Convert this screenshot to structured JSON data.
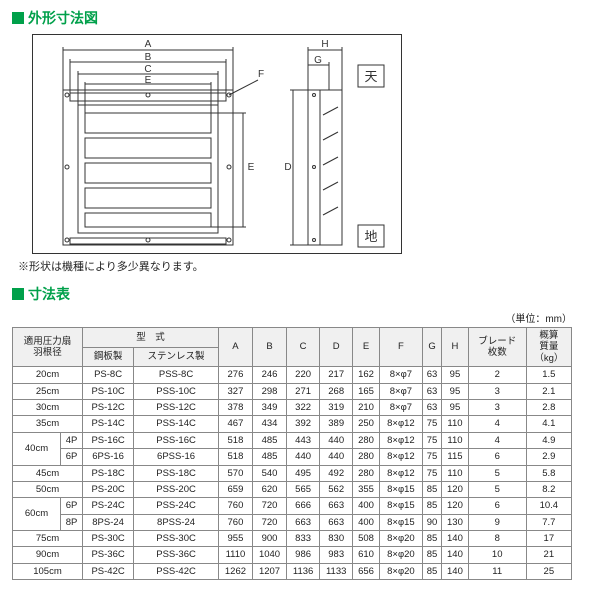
{
  "sections": {
    "diagram_title": "外形寸法図",
    "table_title": "寸法表"
  },
  "diagram_labels": {
    "A": "A",
    "B": "B",
    "C": "C",
    "D": "D",
    "E": "E",
    "F": "F",
    "G": "G",
    "H": "H",
    "sky": "天",
    "ground": "地"
  },
  "note": "※形状は機種により多少異なります。",
  "unit_label": "（単位：mm）",
  "headers": {
    "fan": "適用圧力扇\n羽根径",
    "model": "型　式",
    "steel": "鋼板製",
    "stainless": "ステンレス製",
    "A": "A",
    "B": "B",
    "C": "C",
    "D": "D",
    "E": "E",
    "F": "F",
    "G": "G",
    "H": "H",
    "blades": "ブレード\n枚数",
    "weight": "概算\n質量\n（kg）"
  },
  "rows": [
    {
      "fan": "20cm",
      "sub": "",
      "steel": "PS-8C",
      "ss": "PSS-8C",
      "A": "276",
      "B": "246",
      "C": "220",
      "D": "217",
      "E": "162",
      "F": "8×φ7",
      "G": "63",
      "H": "95",
      "bl": "2",
      "wt": "1.5"
    },
    {
      "fan": "25cm",
      "sub": "",
      "steel": "PS-10C",
      "ss": "PSS-10C",
      "A": "327",
      "B": "298",
      "C": "271",
      "D": "268",
      "E": "165",
      "F": "8×φ7",
      "G": "63",
      "H": "95",
      "bl": "3",
      "wt": "2.1"
    },
    {
      "fan": "30cm",
      "sub": "",
      "steel": "PS-12C",
      "ss": "PSS-12C",
      "A": "378",
      "B": "349",
      "C": "322",
      "D": "319",
      "E": "210",
      "F": "8×φ7",
      "G": "63",
      "H": "95",
      "bl": "3",
      "wt": "2.8"
    },
    {
      "fan": "35cm",
      "sub": "",
      "steel": "PS-14C",
      "ss": "PSS-14C",
      "A": "467",
      "B": "434",
      "C": "392",
      "D": "389",
      "E": "250",
      "F": "8×φ12",
      "G": "75",
      "H": "110",
      "bl": "4",
      "wt": "4.1"
    },
    {
      "fan": "40cm",
      "sub": "4P",
      "steel": "PS-16C",
      "ss": "PSS-16C",
      "A": "518",
      "B": "485",
      "C": "443",
      "D": "440",
      "E": "280",
      "F": "8×φ12",
      "G": "75",
      "H": "110",
      "bl": "4",
      "wt": "4.9"
    },
    {
      "fan": "40cm",
      "sub": "6P",
      "steel": "6PS-16",
      "ss": "6PSS-16",
      "A": "518",
      "B": "485",
      "C": "440",
      "D": "440",
      "E": "280",
      "F": "8×φ12",
      "G": "75",
      "H": "115",
      "bl": "6",
      "wt": "2.9"
    },
    {
      "fan": "45cm",
      "sub": "",
      "steel": "PS-18C",
      "ss": "PSS-18C",
      "A": "570",
      "B": "540",
      "C": "495",
      "D": "492",
      "E": "280",
      "F": "8×φ12",
      "G": "75",
      "H": "110",
      "bl": "5",
      "wt": "5.8"
    },
    {
      "fan": "50cm",
      "sub": "",
      "steel": "PS-20C",
      "ss": "PSS-20C",
      "A": "659",
      "B": "620",
      "C": "565",
      "D": "562",
      "E": "355",
      "F": "8×φ15",
      "G": "85",
      "H": "120",
      "bl": "5",
      "wt": "8.2"
    },
    {
      "fan": "60cm",
      "sub": "6P",
      "steel": "PS-24C",
      "ss": "PSS-24C",
      "A": "760",
      "B": "720",
      "C": "666",
      "D": "663",
      "E": "400",
      "F": "8×φ15",
      "G": "85",
      "H": "120",
      "bl": "6",
      "wt": "10.4"
    },
    {
      "fan": "60cm",
      "sub": "8P",
      "steel": "8PS-24",
      "ss": "8PSS-24",
      "A": "760",
      "B": "720",
      "C": "663",
      "D": "663",
      "E": "400",
      "F": "8×φ15",
      "G": "90",
      "H": "130",
      "bl": "9",
      "wt": "7.7"
    },
    {
      "fan": "75cm",
      "sub": "",
      "steel": "PS-30C",
      "ss": "PSS-30C",
      "A": "955",
      "B": "900",
      "C": "833",
      "D": "830",
      "E": "508",
      "F": "8×φ20",
      "G": "85",
      "H": "140",
      "bl": "8",
      "wt": "17"
    },
    {
      "fan": "90cm",
      "sub": "",
      "steel": "PS-36C",
      "ss": "PSS-36C",
      "A": "1110",
      "B": "1040",
      "C": "986",
      "D": "983",
      "E": "610",
      "F": "8×φ20",
      "G": "85",
      "H": "140",
      "bl": "10",
      "wt": "21"
    },
    {
      "fan": "105cm",
      "sub": "",
      "steel": "PS-42C",
      "ss": "PSS-42C",
      "A": "1262",
      "B": "1207",
      "C": "1136",
      "D": "1133",
      "E": "656",
      "F": "8×φ20",
      "G": "85",
      "H": "140",
      "bl": "11",
      "wt": "25"
    }
  ],
  "colors": {
    "accent": "#00a04a",
    "border": "#888888",
    "bg": "#ffffff"
  }
}
